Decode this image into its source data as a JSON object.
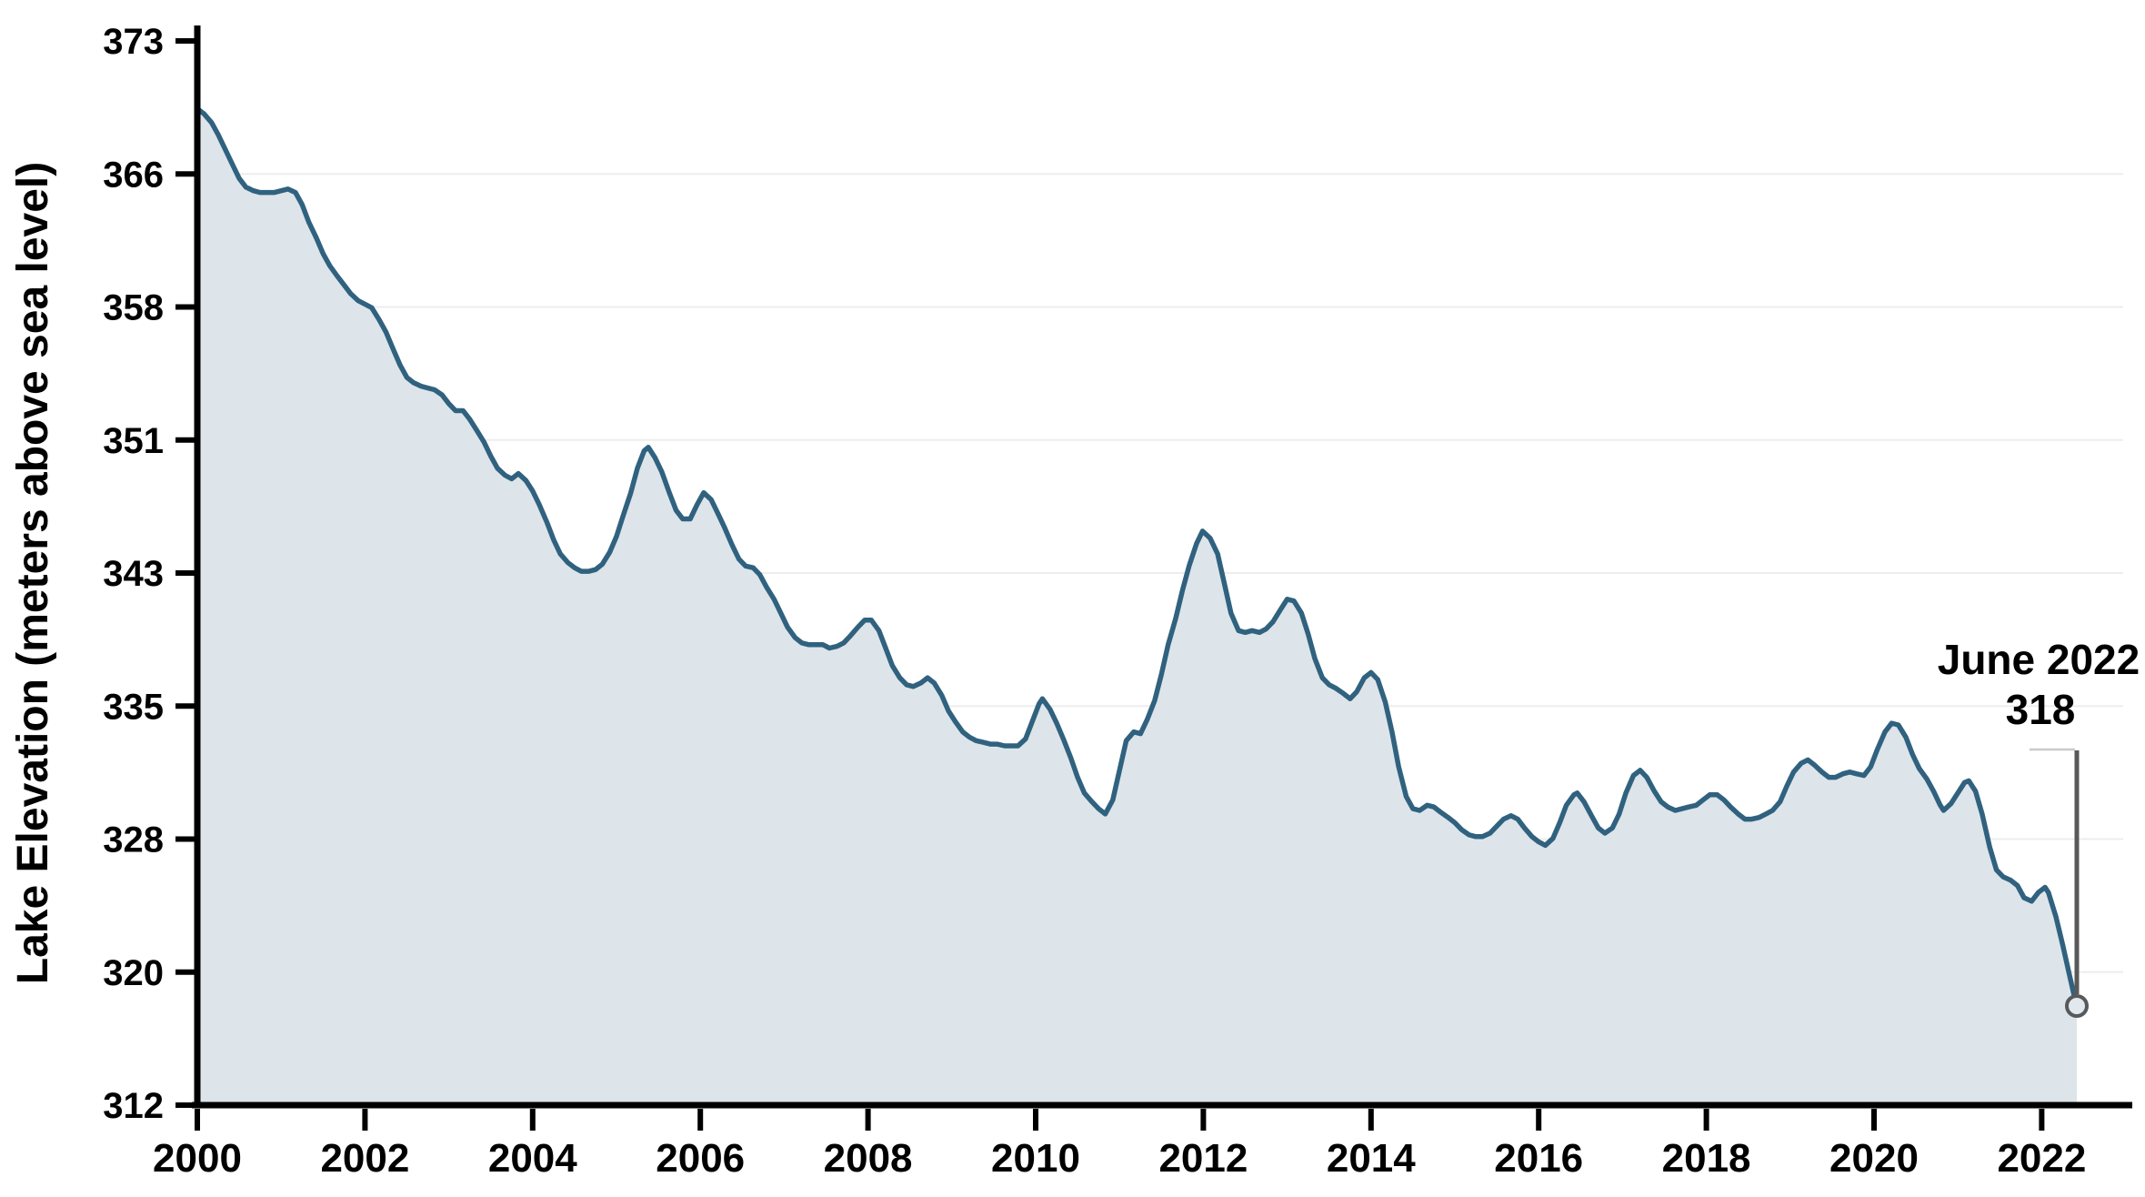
{
  "chart_data": {
    "type": "area",
    "title": "",
    "xlabel": "",
    "ylabel": "Lake Elevation (meters above sea level)",
    "legend_position": "none",
    "grid": "horizontal-faint",
    "x_ticks": [
      "2000",
      "2002",
      "2004",
      "2006",
      "2008",
      "2010",
      "2012",
      "2014",
      "2016",
      "2018",
      "2020",
      "2022"
    ],
    "x_tick_years": [
      2000,
      2002,
      2004,
      2006,
      2008,
      2010,
      2012,
      2014,
      2016,
      2018,
      2020,
      2022
    ],
    "y_ticks": [
      "373",
      "366",
      "358",
      "351",
      "343",
      "335",
      "328",
      "320",
      "312"
    ],
    "y_tick_values_m": [
      373,
      366,
      358,
      351,
      343,
      335,
      328,
      320,
      312
    ],
    "x_range_years": [
      2000,
      2022.47
    ],
    "annotation": {
      "label": "June 2022",
      "value": "318",
      "point_year": 2022.42,
      "point_elevation_m": 318
    },
    "colors": {
      "line": "#30627f",
      "fill": "#dde5ea",
      "grid": "#ededed",
      "axis": "#000000",
      "callout_line": "#595959",
      "callout_elbow": "#c9c9c9",
      "marker_stroke": "#58595b",
      "marker_fill": "#e2e9ee",
      "text": "#000000"
    },
    "series": [
      {
        "name": "Lake elevation",
        "units": "meters above sea level",
        "points": [
          [
            2000.0,
            369.5
          ],
          [
            2000.08,
            369.2
          ],
          [
            2000.17,
            368.7
          ],
          [
            2000.25,
            368.0
          ],
          [
            2000.33,
            367.2
          ],
          [
            2000.42,
            366.3
          ],
          [
            2000.5,
            365.5
          ],
          [
            2000.58,
            365.0
          ],
          [
            2000.67,
            364.8
          ],
          [
            2000.75,
            364.7
          ],
          [
            2000.83,
            364.7
          ],
          [
            2000.92,
            364.7
          ],
          [
            2001.0,
            364.8
          ],
          [
            2001.08,
            364.9
          ],
          [
            2001.17,
            364.7
          ],
          [
            2001.25,
            364.0
          ],
          [
            2001.33,
            363.0
          ],
          [
            2001.42,
            362.1
          ],
          [
            2001.5,
            361.2
          ],
          [
            2001.58,
            360.5
          ],
          [
            2001.67,
            359.9
          ],
          [
            2001.75,
            359.4
          ],
          [
            2001.83,
            358.9
          ],
          [
            2001.92,
            358.5
          ],
          [
            2002.0,
            358.3
          ],
          [
            2002.08,
            358.1
          ],
          [
            2002.17,
            357.4
          ],
          [
            2002.25,
            356.7
          ],
          [
            2002.33,
            355.8
          ],
          [
            2002.42,
            354.8
          ],
          [
            2002.5,
            354.1
          ],
          [
            2002.58,
            353.8
          ],
          [
            2002.67,
            353.6
          ],
          [
            2002.75,
            353.5
          ],
          [
            2002.83,
            353.4
          ],
          [
            2002.92,
            353.1
          ],
          [
            2003.0,
            352.6
          ],
          [
            2003.08,
            352.2
          ],
          [
            2003.17,
            352.2
          ],
          [
            2003.25,
            351.7
          ],
          [
            2003.33,
            351.1
          ],
          [
            2003.42,
            350.4
          ],
          [
            2003.5,
            349.6
          ],
          [
            2003.58,
            348.9
          ],
          [
            2003.67,
            348.5
          ],
          [
            2003.75,
            348.3
          ],
          [
            2003.83,
            348.6
          ],
          [
            2003.92,
            348.2
          ],
          [
            2004.0,
            347.6
          ],
          [
            2004.08,
            346.8
          ],
          [
            2004.17,
            345.8
          ],
          [
            2004.25,
            344.8
          ],
          [
            2004.33,
            344.0
          ],
          [
            2004.42,
            343.5
          ],
          [
            2004.5,
            343.2
          ],
          [
            2004.58,
            343.0
          ],
          [
            2004.67,
            343.0
          ],
          [
            2004.75,
            343.1
          ],
          [
            2004.83,
            343.4
          ],
          [
            2004.92,
            344.1
          ],
          [
            2005.0,
            345.0
          ],
          [
            2005.08,
            346.2
          ],
          [
            2005.17,
            347.5
          ],
          [
            2005.25,
            348.9
          ],
          [
            2005.33,
            349.9
          ],
          [
            2005.38,
            350.1
          ],
          [
            2005.46,
            349.5
          ],
          [
            2005.54,
            348.7
          ],
          [
            2005.63,
            347.5
          ],
          [
            2005.71,
            346.5
          ],
          [
            2005.79,
            346.0
          ],
          [
            2005.88,
            346.0
          ],
          [
            2005.96,
            346.8
          ],
          [
            2006.04,
            347.5
          ],
          [
            2006.13,
            347.1
          ],
          [
            2006.21,
            346.3
          ],
          [
            2006.29,
            345.5
          ],
          [
            2006.38,
            344.5
          ],
          [
            2006.46,
            343.7
          ],
          [
            2006.54,
            343.3
          ],
          [
            2006.63,
            343.2
          ],
          [
            2006.71,
            342.8
          ],
          [
            2006.79,
            342.1
          ],
          [
            2006.88,
            341.4
          ],
          [
            2006.96,
            340.6
          ],
          [
            2007.04,
            339.8
          ],
          [
            2007.13,
            339.2
          ],
          [
            2007.21,
            338.9
          ],
          [
            2007.29,
            338.8
          ],
          [
            2007.38,
            338.8
          ],
          [
            2007.46,
            338.8
          ],
          [
            2007.54,
            338.6
          ],
          [
            2007.63,
            338.7
          ],
          [
            2007.71,
            338.9
          ],
          [
            2007.79,
            339.3
          ],
          [
            2007.88,
            339.8
          ],
          [
            2007.96,
            340.2
          ],
          [
            2008.04,
            340.2
          ],
          [
            2008.13,
            339.6
          ],
          [
            2008.21,
            338.6
          ],
          [
            2008.29,
            337.6
          ],
          [
            2008.38,
            336.9
          ],
          [
            2008.46,
            336.5
          ],
          [
            2008.54,
            336.4
          ],
          [
            2008.63,
            336.6
          ],
          [
            2008.71,
            336.9
          ],
          [
            2008.79,
            336.6
          ],
          [
            2008.88,
            335.9
          ],
          [
            2008.96,
            335.0
          ],
          [
            2009.04,
            334.4
          ],
          [
            2009.13,
            333.8
          ],
          [
            2009.21,
            333.5
          ],
          [
            2009.29,
            333.3
          ],
          [
            2009.38,
            333.2
          ],
          [
            2009.46,
            333.1
          ],
          [
            2009.54,
            333.1
          ],
          [
            2009.63,
            333.0
          ],
          [
            2009.71,
            333.0
          ],
          [
            2009.79,
            333.0
          ],
          [
            2009.88,
            333.4
          ],
          [
            2009.96,
            334.4
          ],
          [
            2010.04,
            335.4
          ],
          [
            2010.08,
            335.7
          ],
          [
            2010.17,
            335.1
          ],
          [
            2010.25,
            334.3
          ],
          [
            2010.33,
            333.4
          ],
          [
            2010.42,
            332.3
          ],
          [
            2010.5,
            331.2
          ],
          [
            2010.58,
            330.3
          ],
          [
            2010.67,
            329.8
          ],
          [
            2010.75,
            329.4
          ],
          [
            2010.83,
            329.1
          ],
          [
            2010.92,
            329.9
          ],
          [
            2011.0,
            331.6
          ],
          [
            2011.08,
            333.3
          ],
          [
            2011.17,
            333.8
          ],
          [
            2011.25,
            333.7
          ],
          [
            2011.33,
            334.5
          ],
          [
            2011.42,
            335.6
          ],
          [
            2011.5,
            337.1
          ],
          [
            2011.58,
            338.8
          ],
          [
            2011.67,
            340.3
          ],
          [
            2011.75,
            341.9
          ],
          [
            2011.83,
            343.3
          ],
          [
            2011.92,
            344.6
          ],
          [
            2011.99,
            345.3
          ],
          [
            2012.08,
            344.9
          ],
          [
            2012.17,
            344.0
          ],
          [
            2012.25,
            342.3
          ],
          [
            2012.33,
            340.6
          ],
          [
            2012.42,
            339.6
          ],
          [
            2012.5,
            339.5
          ],
          [
            2012.58,
            339.6
          ],
          [
            2012.67,
            339.5
          ],
          [
            2012.75,
            339.7
          ],
          [
            2012.83,
            340.1
          ],
          [
            2012.92,
            340.8
          ],
          [
            2013.0,
            341.4
          ],
          [
            2013.08,
            341.3
          ],
          [
            2013.17,
            340.6
          ],
          [
            2013.25,
            339.4
          ],
          [
            2013.33,
            338.0
          ],
          [
            2013.42,
            336.9
          ],
          [
            2013.5,
            336.5
          ],
          [
            2013.58,
            336.3
          ],
          [
            2013.67,
            336.0
          ],
          [
            2013.75,
            335.7
          ],
          [
            2013.83,
            336.1
          ],
          [
            2013.92,
            336.9
          ],
          [
            2014.0,
            337.2
          ],
          [
            2014.08,
            336.8
          ],
          [
            2014.17,
            335.5
          ],
          [
            2014.25,
            333.8
          ],
          [
            2014.33,
            331.8
          ],
          [
            2014.42,
            330.1
          ],
          [
            2014.5,
            329.4
          ],
          [
            2014.58,
            329.3
          ],
          [
            2014.67,
            329.6
          ],
          [
            2014.75,
            329.5
          ],
          [
            2014.83,
            329.2
          ],
          [
            2014.92,
            328.9
          ],
          [
            2015.0,
            328.6
          ],
          [
            2015.08,
            328.2
          ],
          [
            2015.17,
            327.9
          ],
          [
            2015.25,
            327.8
          ],
          [
            2015.33,
            327.8
          ],
          [
            2015.42,
            328.0
          ],
          [
            2015.5,
            328.4
          ],
          [
            2015.58,
            328.8
          ],
          [
            2015.67,
            329.0
          ],
          [
            2015.75,
            328.8
          ],
          [
            2015.83,
            328.3
          ],
          [
            2015.92,
            327.8
          ],
          [
            2016.0,
            327.5
          ],
          [
            2016.08,
            327.3
          ],
          [
            2016.17,
            327.7
          ],
          [
            2016.25,
            328.6
          ],
          [
            2016.33,
            329.6
          ],
          [
            2016.42,
            330.2
          ],
          [
            2016.46,
            330.3
          ],
          [
            2016.54,
            329.8
          ],
          [
            2016.63,
            329.0
          ],
          [
            2016.71,
            328.3
          ],
          [
            2016.79,
            328.0
          ],
          [
            2016.88,
            328.3
          ],
          [
            2016.96,
            329.1
          ],
          [
            2017.04,
            330.3
          ],
          [
            2017.13,
            331.3
          ],
          [
            2017.21,
            331.6
          ],
          [
            2017.29,
            331.2
          ],
          [
            2017.38,
            330.4
          ],
          [
            2017.46,
            329.8
          ],
          [
            2017.54,
            329.5
          ],
          [
            2017.63,
            329.3
          ],
          [
            2017.71,
            329.4
          ],
          [
            2017.79,
            329.5
          ],
          [
            2017.88,
            329.6
          ],
          [
            2017.96,
            329.9
          ],
          [
            2018.04,
            330.2
          ],
          [
            2018.13,
            330.2
          ],
          [
            2018.21,
            329.9
          ],
          [
            2018.29,
            329.5
          ],
          [
            2018.38,
            329.1
          ],
          [
            2018.46,
            328.8
          ],
          [
            2018.54,
            328.8
          ],
          [
            2018.63,
            328.9
          ],
          [
            2018.71,
            329.1
          ],
          [
            2018.79,
            329.3
          ],
          [
            2018.88,
            329.8
          ],
          [
            2018.96,
            330.7
          ],
          [
            2019.04,
            331.5
          ],
          [
            2019.13,
            332.0
          ],
          [
            2019.21,
            332.2
          ],
          [
            2019.29,
            331.9
          ],
          [
            2019.38,
            331.5
          ],
          [
            2019.46,
            331.2
          ],
          [
            2019.54,
            331.2
          ],
          [
            2019.63,
            331.4
          ],
          [
            2019.71,
            331.5
          ],
          [
            2019.79,
            331.4
          ],
          [
            2019.88,
            331.3
          ],
          [
            2019.96,
            331.8
          ],
          [
            2020.04,
            332.8
          ],
          [
            2020.13,
            333.8
          ],
          [
            2020.21,
            334.3
          ],
          [
            2020.29,
            334.2
          ],
          [
            2020.38,
            333.5
          ],
          [
            2020.46,
            332.5
          ],
          [
            2020.54,
            331.7
          ],
          [
            2020.63,
            331.1
          ],
          [
            2020.71,
            330.4
          ],
          [
            2020.79,
            329.6
          ],
          [
            2020.83,
            329.3
          ],
          [
            2020.92,
            329.7
          ],
          [
            2021.0,
            330.3
          ],
          [
            2021.08,
            330.9
          ],
          [
            2021.13,
            331.0
          ],
          [
            2021.21,
            330.4
          ],
          [
            2021.29,
            329.1
          ],
          [
            2021.38,
            327.2
          ],
          [
            2021.46,
            325.9
          ],
          [
            2021.54,
            325.5
          ],
          [
            2021.63,
            325.3
          ],
          [
            2021.71,
            325.0
          ],
          [
            2021.79,
            324.3
          ],
          [
            2021.88,
            324.1
          ],
          [
            2021.96,
            324.6
          ],
          [
            2022.04,
            324.9
          ],
          [
            2022.08,
            324.6
          ],
          [
            2022.17,
            323.2
          ],
          [
            2022.25,
            321.6
          ],
          [
            2022.33,
            319.9
          ],
          [
            2022.42,
            318.0
          ]
        ]
      }
    ]
  }
}
